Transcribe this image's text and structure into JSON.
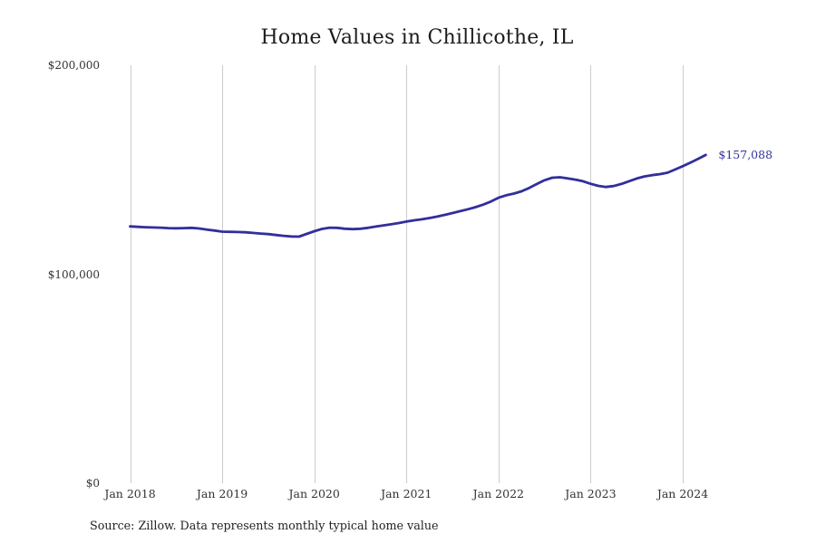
{
  "page": {
    "background_color": "#ffffff"
  },
  "chart_data": {
    "type": "line",
    "title": "Home Values in Chillicothe, IL",
    "source_note": "Source: Zillow. Data represents monthly typical home value",
    "series": [
      {
        "name": "Monthly typical home value",
        "months": [
          "2018-01",
          "2018-02",
          "2018-03",
          "2018-04",
          "2018-05",
          "2018-06",
          "2018-07",
          "2018-08",
          "2018-09",
          "2018-10",
          "2018-11",
          "2018-12",
          "2019-01",
          "2019-02",
          "2019-03",
          "2019-04",
          "2019-05",
          "2019-06",
          "2019-07",
          "2019-08",
          "2019-09",
          "2019-10",
          "2019-11",
          "2019-12",
          "2020-01",
          "2020-02",
          "2020-03",
          "2020-04",
          "2020-05",
          "2020-06",
          "2020-07",
          "2020-08",
          "2020-09",
          "2020-10",
          "2020-11",
          "2020-12",
          "2021-01",
          "2021-02",
          "2021-03",
          "2021-04",
          "2021-05",
          "2021-06",
          "2021-07",
          "2021-08",
          "2021-09",
          "2021-10",
          "2021-11",
          "2021-12",
          "2022-01",
          "2022-02",
          "2022-03",
          "2022-04",
          "2022-05",
          "2022-06",
          "2022-07",
          "2022-08",
          "2022-09",
          "2022-10",
          "2022-11",
          "2022-12",
          "2023-01",
          "2023-02",
          "2023-03",
          "2023-04",
          "2023-05",
          "2023-06",
          "2023-07",
          "2023-08",
          "2023-09",
          "2023-10",
          "2023-11",
          "2023-12",
          "2024-01",
          "2024-02",
          "2024-03",
          "2024-04"
        ],
        "values": [
          122900,
          122700,
          122500,
          122400,
          122300,
          122100,
          122000,
          122100,
          122200,
          121900,
          121400,
          120900,
          120400,
          120300,
          120200,
          120100,
          119800,
          119500,
          119200,
          118800,
          118400,
          118100,
          118000,
          119300,
          120600,
          121700,
          122300,
          122200,
          121800,
          121600,
          121800,
          122200,
          122800,
          123400,
          123900,
          124500,
          125200,
          125800,
          126300,
          126900,
          127600,
          128400,
          129300,
          130200,
          131100,
          132100,
          133300,
          134800,
          136600,
          137800,
          138600,
          139700,
          141300,
          143200,
          145000,
          146200,
          146400,
          145900,
          145300,
          144500,
          143300,
          142300,
          141800,
          142200,
          143200,
          144500,
          145800,
          146800,
          147400,
          147900,
          148600,
          150100,
          151700,
          153400,
          155200,
          157088
        ]
      }
    ],
    "latest_value": 157088,
    "end_label": "$157,088",
    "xlabel": "",
    "ylabel": "",
    "x_tick_labels": [
      "Jan 2018",
      "Jan 2019",
      "Jan 2020",
      "Jan 2021",
      "Jan 2022",
      "Jan 2023",
      "Jan 2024"
    ],
    "y_ticks": [
      {
        "value": 0,
        "label": "$0"
      },
      {
        "value": 100000,
        "label": "$100,000"
      },
      {
        "value": 200000,
        "label": "$200,000"
      }
    ],
    "ylim": [
      0,
      200000
    ],
    "grid": "vertical-only",
    "legend_position": "none",
    "colors": {
      "line": "#312f9c",
      "end_label": "#333399",
      "grid": "#cccccc",
      "tick_label": "#333333",
      "title": "#1c1c1c",
      "source": "#222222"
    }
  }
}
